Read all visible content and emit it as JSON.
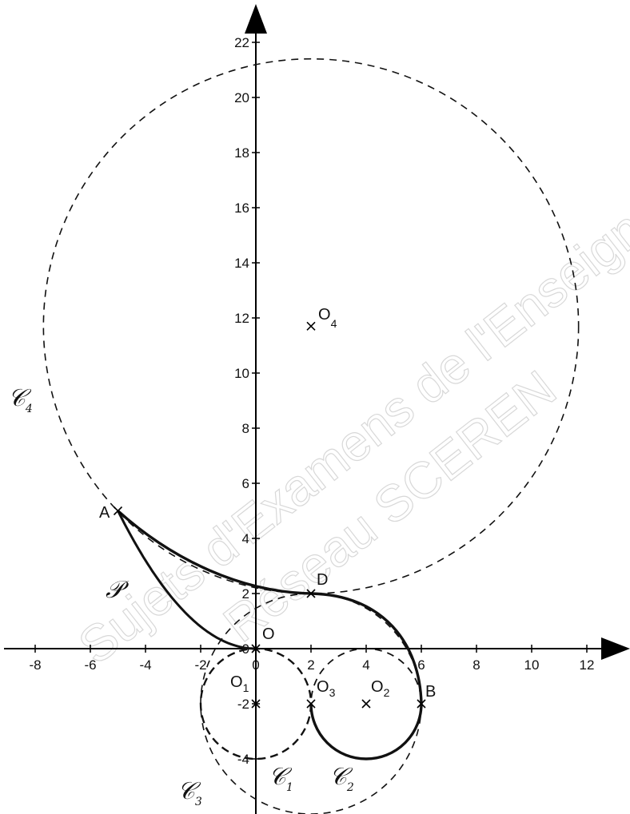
{
  "watermark": {
    "line1": "Sujets d'Examens de l'Enseignement",
    "line2": "Réseau SCEREN"
  },
  "axes": {
    "x_ticks": [
      -8,
      -6,
      -4,
      -2,
      0,
      2,
      4,
      6,
      8,
      10,
      12
    ],
    "y_ticks": [
      -4,
      -2,
      0,
      2,
      4,
      6,
      8,
      10,
      12,
      14,
      16,
      18,
      20,
      22
    ]
  },
  "points": {
    "A": {
      "label": "A",
      "x": -5,
      "y": 5
    },
    "B": {
      "label": "B",
      "x": 6,
      "y": -2
    },
    "D": {
      "label": "D",
      "x": 2,
      "y": 2
    },
    "O": {
      "label": "O",
      "x": 0,
      "y": 0
    },
    "O1": {
      "label": "O",
      "sub": "1",
      "x": 0,
      "y": -2
    },
    "O2": {
      "label": "O",
      "sub": "2",
      "x": 4,
      "y": -2
    },
    "O3": {
      "label": "O",
      "sub": "3",
      "x": 2,
      "y": -2
    },
    "O4": {
      "label": "O",
      "sub": "4",
      "x": 2,
      "y": 11.7
    }
  },
  "circles": {
    "C1": {
      "label": "𝒞",
      "sub": "1",
      "cx": 0,
      "cy": -2,
      "r": 2
    },
    "C2": {
      "label": "𝒞",
      "sub": "2",
      "cx": 4,
      "cy": -2,
      "r": 2
    },
    "C3": {
      "label": "𝒞",
      "sub": "3",
      "cx": 2,
      "cy": -2,
      "r": 4
    },
    "C4": {
      "label": "𝒞",
      "sub": "4",
      "cx": 2,
      "cy": 11.7,
      "r": 9.7
    }
  },
  "parabola": {
    "label": "𝒫",
    "equation_y_of_x": "0.2*x^2",
    "x_from": -5,
    "x_to": 0
  }
}
